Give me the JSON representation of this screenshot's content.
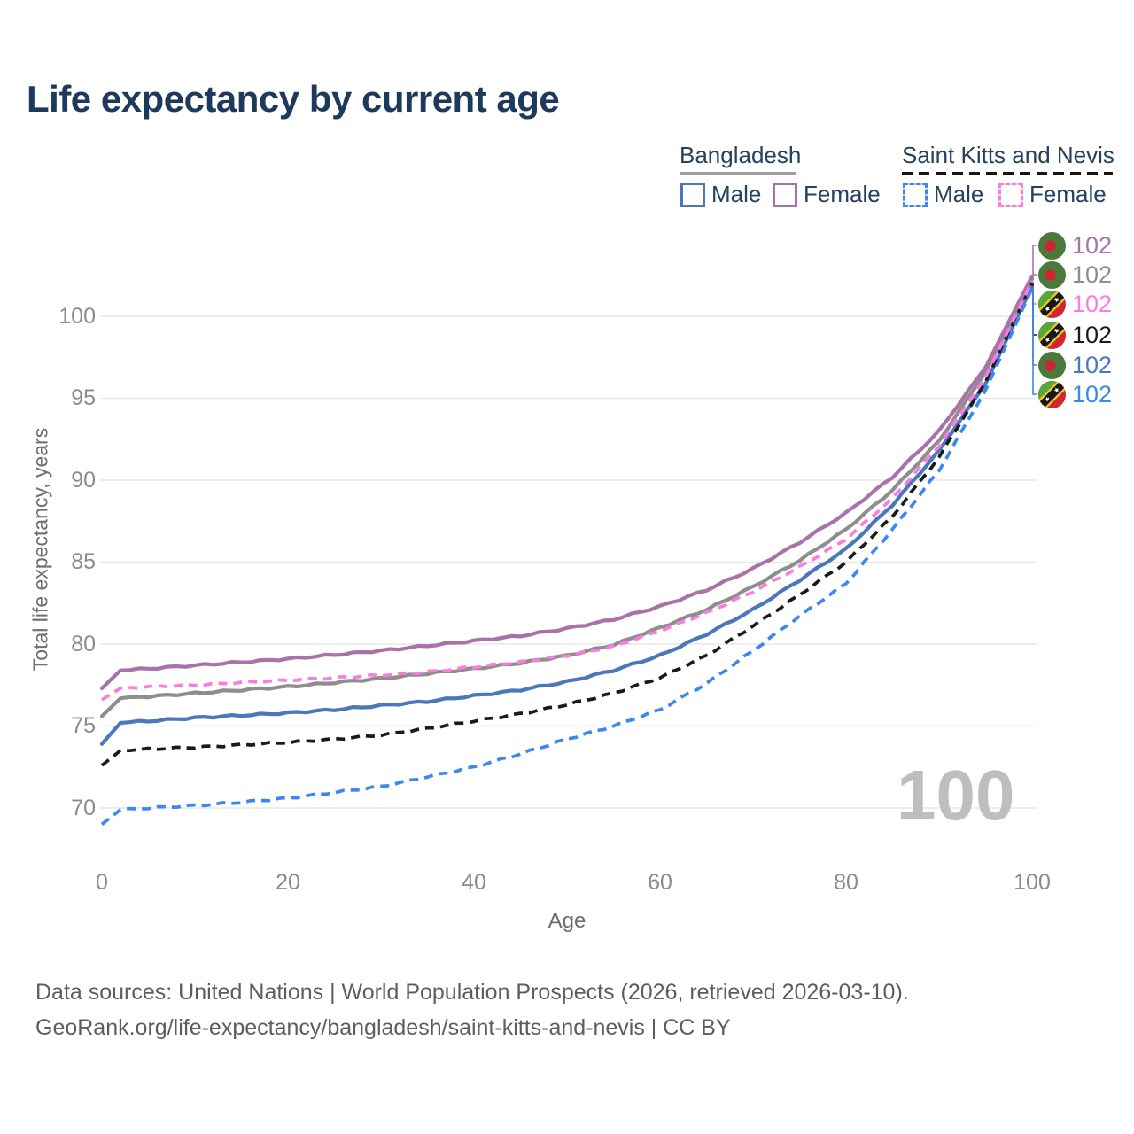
{
  "title": "Life expectancy by current age",
  "watermark": "100",
  "legend": {
    "groups": [
      {
        "label": "Bangladesh",
        "line_style": "solid",
        "underline_color": "#9e9e9e",
        "items": [
          {
            "label": "Male",
            "color": "#4a78ba"
          },
          {
            "label": "Female",
            "color": "#a973a9"
          }
        ]
      },
      {
        "label": "Saint Kitts and Nevis",
        "line_style": "dashed",
        "underline_color": "#161616",
        "items": [
          {
            "label": "Male",
            "color": "#3d87f0"
          },
          {
            "label": "Female",
            "color": "#fb7be0"
          }
        ]
      }
    ]
  },
  "chart_data": {
    "type": "line",
    "title": "Life expectancy by current age",
    "xlabel": "Age",
    "ylabel": "Total life expectancy, years",
    "xlim": [
      0,
      100
    ],
    "ylim": [
      67.5,
      103.5
    ],
    "x_ticks": [
      "0",
      "20",
      "40",
      "60",
      "80",
      "100"
    ],
    "y_ticks": [
      70,
      75,
      80,
      85,
      90,
      95,
      100
    ],
    "grid": "horizontal-only",
    "legend_position": "top-right",
    "ages": [
      0,
      2,
      5,
      10,
      15,
      20,
      25,
      30,
      35,
      40,
      45,
      50,
      55,
      60,
      65,
      70,
      75,
      80,
      85,
      90,
      95,
      100
    ],
    "series": [
      {
        "name": "Bangladesh Female",
        "country": "Bangladesh",
        "sex": "Female",
        "style": "solid",
        "color": "#a973a9",
        "flag": "bd",
        "end_label": "102",
        "values": [
          77.3,
          78.4,
          78.5,
          78.7,
          78.9,
          79.1,
          79.35,
          79.6,
          79.9,
          80.2,
          80.5,
          80.95,
          81.5,
          82.3,
          83.3,
          84.6,
          86.2,
          88.0,
          90.2,
          93.0,
          96.9,
          102.45
        ]
      },
      {
        "name": "Bangladesh Both sexes",
        "country": "Bangladesh",
        "sex": "Both",
        "style": "solid",
        "color": "#8e8e8e",
        "flag": "bd",
        "end_label": "102",
        "values": [
          75.6,
          76.7,
          76.8,
          77.0,
          77.2,
          77.4,
          77.65,
          77.9,
          78.2,
          78.5,
          78.85,
          79.3,
          79.95,
          81.0,
          82.1,
          83.5,
          85.1,
          87.0,
          89.4,
          92.4,
          96.6,
          102.3
        ]
      },
      {
        "name": "Saint Kitts and Nevis Female",
        "country": "Saint Kitts and Nevis",
        "sex": "Female",
        "style": "dashed",
        "color": "#fb7be0",
        "flag": "kn",
        "end_label": "102",
        "values": [
          76.6,
          77.3,
          77.4,
          77.5,
          77.65,
          77.8,
          77.95,
          78.1,
          78.3,
          78.6,
          78.9,
          79.3,
          79.85,
          80.8,
          81.9,
          83.2,
          84.7,
          86.4,
          88.9,
          92.1,
          96.3,
          102.15
        ]
      },
      {
        "name": "Saint Kitts and Nevis Both sexes",
        "country": "Saint Kitts and Nevis",
        "sex": "Both",
        "style": "dashed",
        "color": "#1a1a1a",
        "flag": "kn",
        "end_label": "102",
        "values": [
          72.6,
          73.5,
          73.6,
          73.7,
          73.85,
          74.0,
          74.2,
          74.45,
          74.85,
          75.3,
          75.75,
          76.3,
          77.0,
          77.95,
          79.3,
          81.1,
          83.0,
          85.0,
          87.8,
          91.4,
          96.0,
          102.0
        ]
      },
      {
        "name": "Bangladesh Male",
        "country": "Bangladesh",
        "sex": "Male",
        "style": "solid",
        "color": "#4a78ba",
        "flag": "bd",
        "end_label": "102",
        "values": [
          73.9,
          75.2,
          75.3,
          75.5,
          75.65,
          75.8,
          76.0,
          76.25,
          76.5,
          76.85,
          77.2,
          77.7,
          78.4,
          79.3,
          80.6,
          82.1,
          83.9,
          85.8,
          88.5,
          91.8,
          95.9,
          101.85
        ]
      },
      {
        "name": "Saint Kitts and Nevis Male",
        "country": "Saint Kitts and Nevis",
        "sex": "Male",
        "style": "dashed",
        "color": "#3d87f0",
        "flag": "kn",
        "end_label": "102",
        "values": [
          69.0,
          69.9,
          70.0,
          70.15,
          70.35,
          70.6,
          70.95,
          71.3,
          71.9,
          72.5,
          73.3,
          74.2,
          75.0,
          76.0,
          77.6,
          79.6,
          81.7,
          83.7,
          87.0,
          90.6,
          95.5,
          101.7
        ]
      }
    ]
  },
  "footer": {
    "line1": "Data sources: United Nations | World Population Prospects (2026, retrieved 2026-03-10).",
    "line2": "GeoRank.org/life-expectancy/bangladesh/saint-kitts-and-nevis | CC BY"
  }
}
